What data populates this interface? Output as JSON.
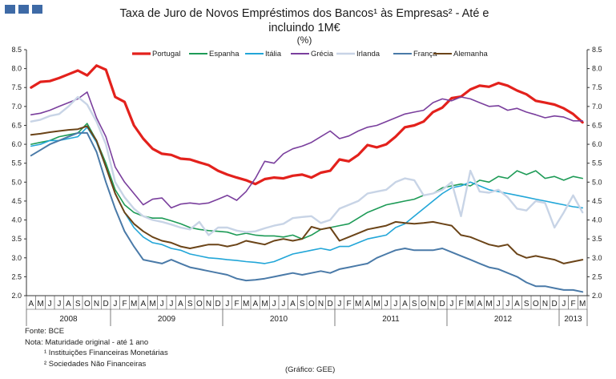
{
  "header": {
    "title_line1": "Taxa de Juro de Novos Empréstimos  dos Bancos¹ às Empresas²  - Até e",
    "title_line2": "incluindo  1M€",
    "unit": "(%)"
  },
  "notes": {
    "source": "Fonte: BCE",
    "nota": "Nota: Maturidade original - até 1 ano",
    "fn1": "¹ Instituições Financeiras Monetárias",
    "fn2": "² Sociedades Não Financeiras",
    "credit": "(Gráfico:  GEE)"
  },
  "chart_data": {
    "type": "line",
    "title": "Taxa de Juro de Novos Empréstimos dos Bancos¹ às Empresas² - Até e incluindo 1M€",
    "ylabel": "(%)",
    "ylim": [
      2.0,
      8.5
    ],
    "yticks": [
      "2.0",
      "2.5",
      "3.0",
      "3.5",
      "4.0",
      "4.5",
      "5.0",
      "5.5",
      "6.0",
      "6.5",
      "7.0",
      "7.5",
      "8.0",
      "8.5"
    ],
    "dual_y_axis": true,
    "grid": false,
    "legend_position": "top",
    "month_labels": [
      "A",
      "M",
      "J",
      "J",
      "A",
      "S",
      "O",
      "N",
      "D",
      "J",
      "F",
      "M",
      "A",
      "M",
      "J",
      "J",
      "A",
      "S",
      "O",
      "N",
      "D",
      "J",
      "F",
      "M",
      "A",
      "M",
      "J",
      "J",
      "A",
      "S",
      "O",
      "N",
      "D",
      "J",
      "F",
      "M",
      "A",
      "M",
      "J",
      "J",
      "A",
      "S",
      "O",
      "N",
      "D",
      "J",
      "F",
      "M",
      "A",
      "M",
      "J",
      "J",
      "A",
      "S",
      "O",
      "N",
      "D",
      "J",
      "F",
      "M"
    ],
    "year_labels": [
      {
        "label": "2008",
        "start": 0,
        "end": 8
      },
      {
        "label": "2009",
        "start": 9,
        "end": 20
      },
      {
        "label": "2010",
        "start": 21,
        "end": 32
      },
      {
        "label": "2011",
        "start": 33,
        "end": 44
      },
      {
        "label": "2012",
        "start": 45,
        "end": 56
      },
      {
        "label": "2013",
        "start": 57,
        "end": 59
      }
    ],
    "x": [
      "2008-04",
      "2008-05",
      "2008-06",
      "2008-07",
      "2008-08",
      "2008-09",
      "2008-10",
      "2008-11",
      "2008-12",
      "2009-01",
      "2009-02",
      "2009-03",
      "2009-04",
      "2009-05",
      "2009-06",
      "2009-07",
      "2009-08",
      "2009-09",
      "2009-10",
      "2009-11",
      "2009-12",
      "2010-01",
      "2010-02",
      "2010-03",
      "2010-04",
      "2010-05",
      "2010-06",
      "2010-07",
      "2010-08",
      "2010-09",
      "2010-10",
      "2010-11",
      "2010-12",
      "2011-01",
      "2011-02",
      "2011-03",
      "2011-04",
      "2011-05",
      "2011-06",
      "2011-07",
      "2011-08",
      "2011-09",
      "2011-10",
      "2011-11",
      "2011-12",
      "2012-01",
      "2012-02",
      "2012-03",
      "2012-04",
      "2012-05",
      "2012-06",
      "2012-07",
      "2012-08",
      "2012-09",
      "2012-10",
      "2012-11",
      "2012-12",
      "2013-01",
      "2013-02",
      "2013-03"
    ],
    "series": [
      {
        "name": "Portugal",
        "color": "#e3211c",
        "width": 3.2,
        "values": [
          7.5,
          7.65,
          7.67,
          7.75,
          7.85,
          7.95,
          7.82,
          8.08,
          7.97,
          7.25,
          7.12,
          6.5,
          6.15,
          5.88,
          5.75,
          5.72,
          5.62,
          5.6,
          5.52,
          5.45,
          5.3,
          5.2,
          5.12,
          5.05,
          4.95,
          5.08,
          5.12,
          5.1,
          5.17,
          5.2,
          5.12,
          5.25,
          5.3,
          5.6,
          5.55,
          5.72,
          5.98,
          5.92,
          6.0,
          6.2,
          6.45,
          6.5,
          6.6,
          6.85,
          6.97,
          7.22,
          7.26,
          7.45,
          7.55,
          7.52,
          7.62,
          7.55,
          7.42,
          7.32,
          7.15,
          7.1,
          7.05,
          6.95,
          6.8,
          6.58
        ]
      },
      {
        "name": "Espanha",
        "color": "#1e9b57",
        "width": 1.6,
        "values": [
          6.0,
          6.05,
          6.1,
          6.2,
          6.25,
          6.3,
          6.55,
          6.1,
          5.5,
          4.8,
          4.4,
          4.2,
          4.1,
          4.05,
          4.05,
          3.98,
          3.9,
          3.8,
          3.75,
          3.72,
          3.7,
          3.68,
          3.6,
          3.65,
          3.6,
          3.58,
          3.58,
          3.55,
          3.6,
          3.5,
          3.6,
          3.75,
          3.8,
          3.85,
          3.9,
          4.05,
          4.2,
          4.3,
          4.4,
          4.45,
          4.5,
          4.55,
          4.65,
          4.7,
          4.85,
          4.9,
          4.95,
          4.9,
          5.05,
          5.0,
          5.15,
          5.1,
          5.3,
          5.2,
          5.3,
          5.1,
          5.15,
          5.05,
          5.15,
          5.1
        ]
      },
      {
        "name": "Itália",
        "color": "#22a6d8",
        "width": 1.6,
        "values": [
          5.95,
          6.0,
          6.1,
          6.1,
          6.15,
          6.2,
          6.45,
          6.05,
          5.4,
          4.7,
          4.2,
          3.8,
          3.55,
          3.4,
          3.35,
          3.25,
          3.2,
          3.1,
          3.05,
          3.0,
          2.98,
          2.95,
          2.93,
          2.9,
          2.88,
          2.85,
          2.9,
          3.0,
          3.1,
          3.15,
          3.2,
          3.25,
          3.2,
          3.3,
          3.3,
          3.4,
          3.5,
          3.55,
          3.6,
          3.8,
          3.9,
          4.1,
          4.3,
          4.5,
          4.7,
          4.85,
          4.9,
          5.0,
          4.9,
          4.8,
          4.75,
          4.7,
          4.65,
          4.6,
          4.55,
          4.5,
          4.45,
          4.4,
          4.35,
          4.32
        ]
      },
      {
        "name": "Grécia",
        "color": "#7a3f9d",
        "width": 1.6,
        "values": [
          6.78,
          6.82,
          6.9,
          7.0,
          7.1,
          7.2,
          7.38,
          6.7,
          6.2,
          5.4,
          5.0,
          4.7,
          4.4,
          4.55,
          4.58,
          4.32,
          4.42,
          4.45,
          4.42,
          4.45,
          4.55,
          4.65,
          4.52,
          4.75,
          5.1,
          5.55,
          5.5,
          5.75,
          5.88,
          5.95,
          6.05,
          6.2,
          6.35,
          6.15,
          6.22,
          6.35,
          6.45,
          6.5,
          6.6,
          6.7,
          6.8,
          6.85,
          6.9,
          7.1,
          7.2,
          7.15,
          7.25,
          7.2,
          7.1,
          7.0,
          7.02,
          6.9,
          6.95,
          6.85,
          6.78,
          6.7,
          6.75,
          6.72,
          6.62,
          6.62
        ]
      },
      {
        "name": "Irlanda",
        "color": "#c8d4e6",
        "width": 2.4,
        "values": [
          6.6,
          6.65,
          6.75,
          6.8,
          7.0,
          7.25,
          7.05,
          6.6,
          6.0,
          5.0,
          4.6,
          4.3,
          4.1,
          4.0,
          3.95,
          3.88,
          3.8,
          3.75,
          3.95,
          3.6,
          3.8,
          3.8,
          3.72,
          3.68,
          3.7,
          3.78,
          3.85,
          3.9,
          4.05,
          4.08,
          4.1,
          3.92,
          4.0,
          4.3,
          4.4,
          4.5,
          4.7,
          4.75,
          4.8,
          5.0,
          5.1,
          5.05,
          4.65,
          4.7,
          4.8,
          5.0,
          4.1,
          5.3,
          4.75,
          4.72,
          4.8,
          4.6,
          4.3,
          4.25,
          4.5,
          4.45,
          3.8,
          4.2,
          4.65,
          4.2
        ]
      },
      {
        "name": "França",
        "color": "#4a7aa8",
        "width": 2.0,
        "values": [
          5.7,
          5.85,
          6.0,
          6.1,
          6.2,
          6.3,
          6.3,
          5.8,
          5.0,
          4.3,
          3.7,
          3.3,
          2.95,
          2.9,
          2.85,
          2.95,
          2.85,
          2.75,
          2.7,
          2.65,
          2.6,
          2.55,
          2.45,
          2.4,
          2.42,
          2.45,
          2.5,
          2.55,
          2.6,
          2.55,
          2.6,
          2.65,
          2.6,
          2.7,
          2.75,
          2.8,
          2.85,
          3.0,
          3.1,
          3.2,
          3.25,
          3.2,
          3.2,
          3.2,
          3.25,
          3.15,
          3.05,
          2.95,
          2.85,
          2.75,
          2.7,
          2.6,
          2.5,
          2.35,
          2.25,
          2.25,
          2.2,
          2.15,
          2.15,
          2.1
        ]
      },
      {
        "name": "Alemanha",
        "color": "#6b4418",
        "width": 2.0,
        "values": [
          6.25,
          6.28,
          6.32,
          6.35,
          6.38,
          6.4,
          6.48,
          6.1,
          5.4,
          4.7,
          4.2,
          3.9,
          3.7,
          3.55,
          3.45,
          3.4,
          3.3,
          3.25,
          3.3,
          3.35,
          3.35,
          3.3,
          3.35,
          3.45,
          3.4,
          3.35,
          3.45,
          3.5,
          3.45,
          3.5,
          3.82,
          3.75,
          3.8,
          3.45,
          3.55,
          3.65,
          3.75,
          3.8,
          3.85,
          3.95,
          3.92,
          3.9,
          3.92,
          3.95,
          3.9,
          3.85,
          3.6,
          3.55,
          3.45,
          3.35,
          3.3,
          3.35,
          3.1,
          3.0,
          3.05,
          3.0,
          2.95,
          2.85,
          2.9,
          2.95
        ]
      }
    ]
  }
}
